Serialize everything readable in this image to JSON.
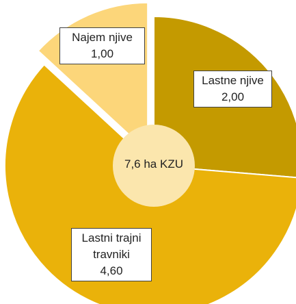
{
  "chart_data": {
    "type": "pie",
    "categories": [
      "Lastne njive",
      "Lastni trajni travniki",
      "Najem njive"
    ],
    "values": [
      2.0,
      4.6,
      1.0
    ],
    "value_labels": [
      "2,00",
      "4,60",
      "1,00"
    ],
    "colors": [
      "#c49a00",
      "#eab20a",
      "#fcd67a"
    ],
    "exploded": "Najem njive",
    "center_label": "7,6 ha KZU"
  }
}
